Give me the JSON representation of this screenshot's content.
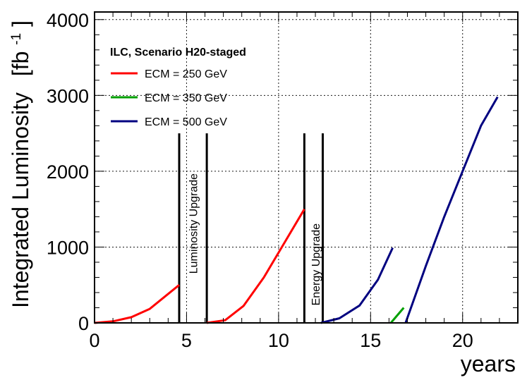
{
  "chart_data": {
    "type": "line",
    "title": "",
    "xlabel": "years",
    "ylabel": "Integrated Luminosity",
    "ylabel_unit_base": "[fb",
    "ylabel_unit_sup": "-1",
    "ylabel_unit_close": "]",
    "xlim": [
      0,
      23
    ],
    "ylim": [
      0,
      4100
    ],
    "x_ticks": [
      0,
      5,
      10,
      15,
      20
    ],
    "y_ticks": [
      0,
      1000,
      2000,
      3000,
      4000
    ],
    "grid": true,
    "legend": {
      "title": "ILC, Scenario H20-staged",
      "placement": "top-left",
      "entries": [
        {
          "label": "ECM = 250 GeV",
          "color": "#ff0000"
        },
        {
          "label": "ECM = 350 GeV",
          "color": "#00a000"
        },
        {
          "label": "ECM = 500 GeV",
          "color": "#000080"
        }
      ]
    },
    "series": [
      {
        "name": "ECM = 250 GeV",
        "color": "#ff0000",
        "segments": [
          [
            [
              0,
              0
            ],
            [
              1,
              20
            ],
            [
              2,
              75
            ],
            [
              3,
              185
            ],
            [
              4.6,
              500
            ]
          ],
          [
            [
              6.1,
              0
            ],
            [
              7.1,
              35
            ],
            [
              8.1,
              225
            ],
            [
              9.2,
              600
            ],
            [
              10.3,
              1050
            ],
            [
              11.4,
              1500
            ]
          ]
        ]
      },
      {
        "name": "ECM = 350 GeV",
        "color": "#00a000",
        "segments": [
          [
            [
              16.1,
              0
            ],
            [
              16.8,
              200
            ]
          ]
        ]
      },
      {
        "name": "ECM = 500 GeV",
        "color": "#000080",
        "segments": [
          [
            [
              12.3,
              0
            ],
            [
              13.3,
              60
            ],
            [
              14.4,
              230
            ],
            [
              15.4,
              570
            ],
            [
              16.2,
              990
            ]
          ],
          [
            [
              16.9,
              0
            ],
            [
              18,
              750
            ],
            [
              19,
              1400
            ],
            [
              20,
              2000
            ],
            [
              21,
              2600
            ],
            [
              21.9,
              2980
            ]
          ]
        ]
      }
    ],
    "markers": [
      {
        "x": 4.6,
        "ymax": 2500,
        "color": "#000000"
      },
      {
        "x": 6.1,
        "ymax": 2500,
        "color": "#000000"
      },
      {
        "x": 11.4,
        "ymax": 2500,
        "color": "#000000"
      },
      {
        "x": 12.4,
        "ymax": 2500,
        "color": "#000000"
      }
    ],
    "annotations": [
      {
        "text": "Luminosity Upgrade",
        "x": 5.35,
        "y_center": 1310
      },
      {
        "text": "Energy Upgrade",
        "x": 12.0,
        "y_center": 770
      }
    ]
  }
}
